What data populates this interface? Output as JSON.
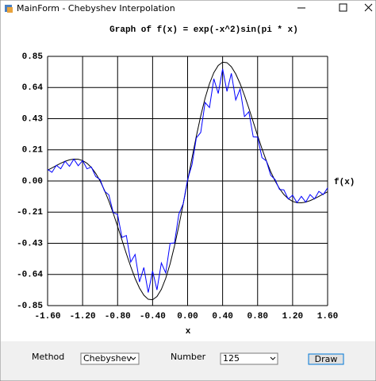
{
  "window": {
    "title": "MainForm - Chebyshev Interpolation"
  },
  "chart_data": {
    "type": "line",
    "title": "Graph of f(x) = exp(-x^2)sin(pi * x)",
    "x_label": "x",
    "y_label": "f(x)",
    "x": [
      -1.6,
      -1.55,
      -1.5,
      -1.45,
      -1.4,
      -1.35,
      -1.3,
      -1.25,
      -1.2,
      -1.15,
      -1.1,
      -1.05,
      -1.0,
      -0.95,
      -0.9,
      -0.85,
      -0.8,
      -0.75,
      -0.7,
      -0.65,
      -0.6,
      -0.55,
      -0.5,
      -0.45,
      -0.4,
      -0.35,
      -0.3,
      -0.25,
      -0.2,
      -0.15,
      -0.1,
      -0.05,
      0,
      0.05,
      0.1,
      0.15,
      0.2,
      0.25,
      0.3,
      0.35,
      0.4,
      0.45,
      0.5,
      0.55,
      0.6,
      0.65,
      0.7,
      0.75,
      0.8,
      0.85,
      0.9,
      0.95,
      1.0,
      1.05,
      1.1,
      1.15,
      1.2,
      1.25,
      1.3,
      1.35,
      1.4,
      1.45,
      1.5,
      1.55,
      1.6
    ],
    "series": [
      {
        "color": "#000000",
        "values": [
          0.074,
          0.089,
          0.105,
          0.121,
          0.134,
          0.144,
          0.149,
          0.148,
          0.139,
          0.121,
          0.092,
          0.052,
          0,
          -0.063,
          -0.137,
          -0.22,
          -0.31,
          -0.403,
          -0.496,
          -0.584,
          -0.664,
          -0.73,
          -0.779,
          -0.807,
          -0.81,
          -0.788,
          -0.739,
          -0.664,
          -0.565,
          -0.444,
          -0.306,
          -0.156,
          0,
          0.156,
          0.306,
          0.444,
          0.565,
          0.664,
          0.739,
          0.788,
          0.81,
          0.807,
          0.779,
          0.73,
          0.664,
          0.584,
          0.496,
          0.403,
          0.31,
          0.22,
          0.137,
          0.063,
          0,
          -0.052,
          -0.092,
          -0.121,
          -0.139,
          -0.148,
          -0.149,
          -0.144,
          -0.134,
          -0.121,
          -0.105,
          -0.089,
          -0.074
        ]
      },
      {
        "color": "#0000ff",
        "values": [
          0.079,
          0.059,
          0.107,
          0.083,
          0.135,
          0.1,
          0.149,
          0.104,
          0.139,
          0.083,
          0.095,
          0.03,
          0.01,
          -0.069,
          -0.095,
          -0.215,
          -0.229,
          -0.385,
          -0.372,
          -0.553,
          -0.501,
          -0.689,
          -0.59,
          -0.761,
          -0.614,
          -0.743,
          -0.559,
          -0.627,
          -0.425,
          -0.423,
          -0.226,
          -0.155,
          0.01,
          0.111,
          0.294,
          0.331,
          0.535,
          0.501,
          0.697,
          0.597,
          0.764,
          0.611,
          0.734,
          0.553,
          0.627,
          0.439,
          0.472,
          0.301,
          0.299,
          0.159,
          0.137,
          0.039,
          0.01,
          -0.058,
          -0.061,
          -0.123,
          -0.097,
          -0.148,
          -0.105,
          -0.144,
          -0.093,
          -0.123,
          -0.071,
          -0.093,
          -0.047
        ]
      }
    ],
    "xlim": [
      -1.6,
      1.6
    ],
    "ylim": [
      -0.85,
      0.85
    ],
    "xticks": [
      {
        "value": -1.6,
        "label": "-1.60"
      },
      {
        "value": -1.2,
        "label": "-1.20"
      },
      {
        "value": -0.8,
        "label": "-0.80"
      },
      {
        "value": -0.4,
        "label": "-0.40"
      },
      {
        "value": 0,
        "label": "0.00"
      },
      {
        "value": 0.4,
        "label": "0.40"
      },
      {
        "value": 0.8,
        "label": "0.80"
      },
      {
        "value": 1.2,
        "label": "1.20"
      },
      {
        "value": 1.6,
        "label": "1.60"
      }
    ],
    "yticks": [
      {
        "value": 0.85,
        "label": "0.85"
      },
      {
        "value": 0.6375,
        "label": "0.64"
      },
      {
        "value": 0.425,
        "label": "0.43"
      },
      {
        "value": 0.2125,
        "label": "0.21"
      },
      {
        "value": 0,
        "label": "0.00"
      },
      {
        "value": -0.2125,
        "label": "-0.21"
      },
      {
        "value": -0.425,
        "label": "-0.43"
      },
      {
        "value": -0.6375,
        "label": "-0.64"
      },
      {
        "value": -0.85,
        "label": "-0.85"
      }
    ],
    "grid": true
  },
  "controls": {
    "method_label": "Method",
    "method_value": "Chebyshev",
    "number_label": "Number",
    "number_value": "125",
    "button": "Draw"
  }
}
